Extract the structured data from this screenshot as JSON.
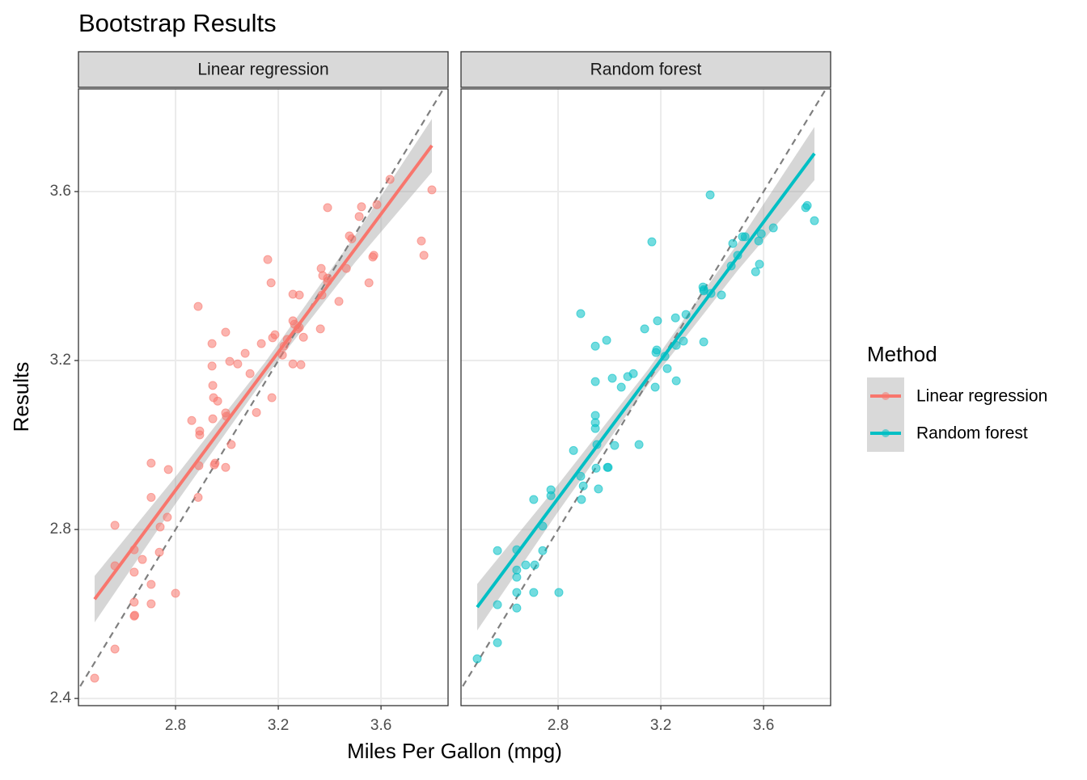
{
  "chart_data": {
    "type": "scatter",
    "title": "Bootstrap Results",
    "x_label": "Miles Per Gallon (mpg)",
    "y_label": "Results",
    "legend_title": "Method",
    "legend_position": "right",
    "facet": true,
    "diagonal": true,
    "grid": true,
    "xlim": [
      2.422,
      3.861
    ],
    "ylim": [
      2.383,
      3.843
    ],
    "xticks": [
      {
        "value": 2.8,
        "label": "2.8"
      },
      {
        "value": 3.2,
        "label": "3.2"
      },
      {
        "value": 3.6,
        "label": "3.6"
      }
    ],
    "yticks": [
      {
        "value": 2.4,
        "label": "2.4"
      },
      {
        "value": 2.8,
        "label": "2.8"
      },
      {
        "value": 3.2,
        "label": "3.2"
      },
      {
        "value": 3.6,
        "label": "3.6"
      }
    ],
    "series": [
      {
        "name": "Linear regression",
        "color": "#F8766D",
        "x": [
          2.485,
          2.564,
          2.564,
          2.564,
          2.639,
          2.639,
          2.641,
          2.639,
          2.639,
          2.671,
          2.705,
          2.705,
          2.705,
          2.705,
          2.737,
          2.74,
          2.768,
          2.772,
          2.8,
          2.863,
          2.888,
          2.888,
          2.891,
          2.894,
          2.894,
          2.942,
          2.942,
          2.945,
          2.945,
          2.948,
          2.951,
          2.954,
          2.964,
          2.995,
          2.995,
          2.995,
          2.998,
          3.011,
          3.017,
          3.042,
          3.071,
          3.09,
          3.115,
          3.134,
          3.159,
          3.172,
          3.175,
          3.178,
          3.187,
          3.216,
          3.222,
          3.235,
          3.257,
          3.257,
          3.257,
          3.263,
          3.282,
          3.288,
          3.298,
          3.276,
          3.364,
          3.367,
          3.37,
          3.373,
          3.392,
          3.392,
          3.436,
          3.465,
          3.477,
          3.515,
          3.524,
          3.553,
          3.568,
          3.572,
          3.584,
          3.635,
          3.757,
          3.767,
          3.798,
          3.282,
          3.392,
          3.486
        ],
        "values": [
          2.448,
          2.517,
          2.81,
          2.714,
          2.628,
          2.595,
          2.597,
          2.699,
          2.752,
          2.729,
          2.957,
          2.876,
          2.67,
          2.624,
          2.746,
          2.806,
          2.829,
          2.942,
          2.649,
          3.058,
          3.328,
          2.876,
          2.951,
          3.033,
          3.024,
          3.24,
          3.187,
          3.141,
          3.062,
          3.112,
          2.953,
          2.957,
          3.104,
          3.267,
          3.076,
          2.947,
          3.068,
          3.198,
          3.001,
          3.192,
          3.217,
          3.169,
          3.077,
          3.24,
          3.439,
          3.384,
          3.112,
          3.254,
          3.261,
          3.213,
          3.234,
          3.25,
          3.357,
          3.294,
          3.192,
          3.286,
          3.278,
          3.19,
          3.255,
          3.275,
          3.275,
          3.418,
          3.355,
          3.401,
          3.562,
          3.387,
          3.34,
          3.418,
          3.495,
          3.541,
          3.564,
          3.384,
          3.445,
          3.449,
          3.569,
          3.629,
          3.483,
          3.449,
          3.604,
          3.355,
          3.395,
          3.488
        ],
        "fit": {
          "x": [
            2.485,
            2.8,
            3.15,
            3.5,
            3.798
          ],
          "values": [
            2.635,
            2.893,
            3.179,
            3.465,
            3.709
          ],
          "lower": [
            2.58,
            2.861,
            3.161,
            3.433,
            3.646
          ],
          "upper": [
            2.69,
            2.925,
            3.197,
            3.497,
            3.772
          ]
        }
      },
      {
        "name": "Random forest",
        "color": "#00BFC4",
        "x": [
          2.485,
          2.564,
          2.564,
          2.564,
          2.639,
          2.639,
          2.639,
          2.639,
          2.639,
          2.674,
          2.705,
          2.705,
          2.709,
          2.74,
          2.74,
          2.772,
          2.772,
          2.803,
          2.86,
          2.888,
          2.888,
          2.891,
          2.898,
          2.957,
          2.945,
          2.945,
          2.945,
          2.945,
          2.945,
          2.948,
          2.951,
          2.989,
          2.992,
          2.995,
          3.011,
          3.02,
          3.046,
          3.071,
          3.093,
          3.115,
          3.137,
          3.165,
          3.178,
          3.181,
          3.184,
          3.187,
          3.216,
          3.225,
          3.257,
          3.26,
          3.26,
          3.288,
          3.298,
          3.364,
          3.367,
          3.367,
          3.367,
          3.392,
          3.395,
          3.436,
          3.474,
          3.48,
          3.499,
          3.518,
          3.528,
          3.569,
          3.581,
          3.584,
          3.591,
          3.638,
          3.764,
          3.77,
          3.798
        ],
        "values": [
          2.494,
          2.75,
          2.622,
          2.532,
          2.752,
          2.704,
          2.687,
          2.651,
          2.614,
          2.716,
          2.871,
          2.651,
          2.716,
          2.75,
          2.808,
          2.894,
          2.88,
          2.651,
          2.987,
          3.311,
          2.926,
          2.871,
          2.903,
          2.896,
          3.07,
          3.053,
          3.039,
          3.234,
          3.15,
          2.945,
          3.001,
          3.248,
          2.947,
          2.947,
          3.158,
          2.999,
          3.137,
          3.162,
          3.169,
          3.001,
          3.275,
          3.481,
          3.137,
          3.219,
          3.225,
          3.294,
          3.21,
          3.181,
          3.301,
          3.236,
          3.152,
          3.246,
          3.309,
          3.374,
          3.244,
          3.365,
          3.368,
          3.592,
          3.359,
          3.355,
          3.424,
          3.477,
          3.449,
          3.493,
          3.493,
          3.41,
          3.483,
          3.428,
          3.5,
          3.514,
          3.562,
          3.567,
          3.531
        ],
        "fit": {
          "x": [
            2.485,
            2.8,
            3.15,
            3.5,
            3.798
          ],
          "values": [
            2.616,
            2.874,
            3.16,
            3.446,
            3.69
          ],
          "lower": [
            2.561,
            2.842,
            3.142,
            3.414,
            3.627
          ],
          "upper": [
            2.671,
            2.906,
            3.178,
            3.478,
            3.753
          ]
        }
      }
    ]
  }
}
